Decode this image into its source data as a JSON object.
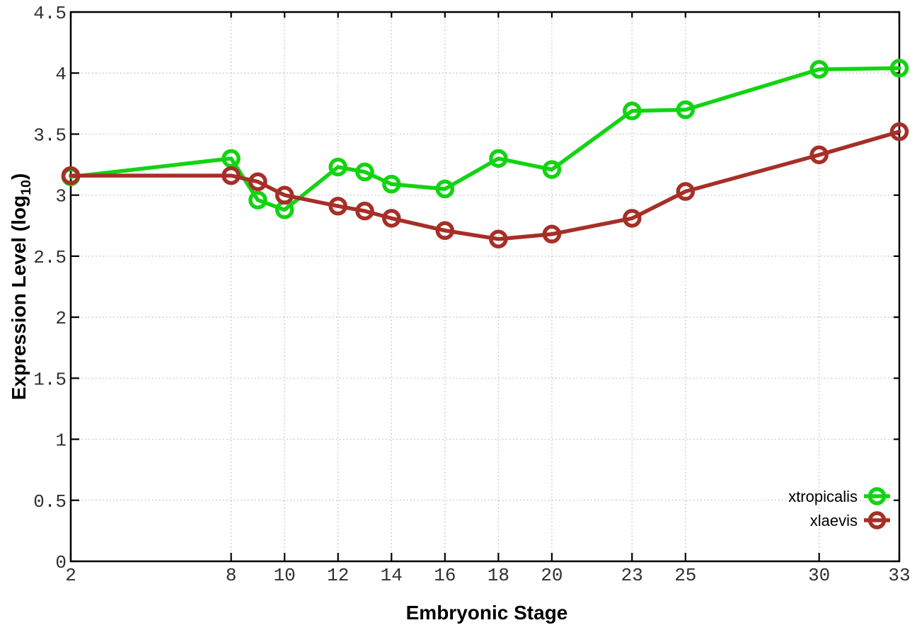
{
  "figure": {
    "background": "#ffffff",
    "border_color": "#000000",
    "grid_color": "#b8b8b8",
    "tick_label_color": "#303030"
  },
  "chart_data": {
    "type": "line",
    "title": "",
    "xlabel": "Embryonic Stage",
    "ylabel": "Expression Level (log10)",
    "ylabel_parts": {
      "pre": "Expression Level (log",
      "sub": "10",
      "post": ")"
    },
    "xlim": [
      2,
      33
    ],
    "ylim": [
      0,
      4.5
    ],
    "xticks": [
      2,
      8,
      10,
      12,
      14,
      16,
      18,
      20,
      23,
      25,
      30,
      33
    ],
    "yticks": [
      0,
      0.5,
      1,
      1.5,
      2,
      2.5,
      3,
      3.5,
      4,
      4.5
    ],
    "grid": true,
    "legend_position": "bottom-right",
    "x": [
      2,
      8,
      9,
      10,
      12,
      13,
      14,
      16,
      18,
      20,
      23,
      25,
      30,
      33
    ],
    "series": [
      {
        "name": "xtropicalis",
        "color": "#12d412",
        "values": [
          3.15,
          3.3,
          2.96,
          2.88,
          3.23,
          3.19,
          3.09,
          3.05,
          3.3,
          3.21,
          3.69,
          3.7,
          4.03,
          4.04
        ]
      },
      {
        "name": "xlaevis",
        "color": "#a62f28",
        "values": [
          3.16,
          3.16,
          3.11,
          3.0,
          2.91,
          2.87,
          2.81,
          2.71,
          2.64,
          2.68,
          2.81,
          3.03,
          3.33,
          3.52
        ]
      }
    ]
  }
}
